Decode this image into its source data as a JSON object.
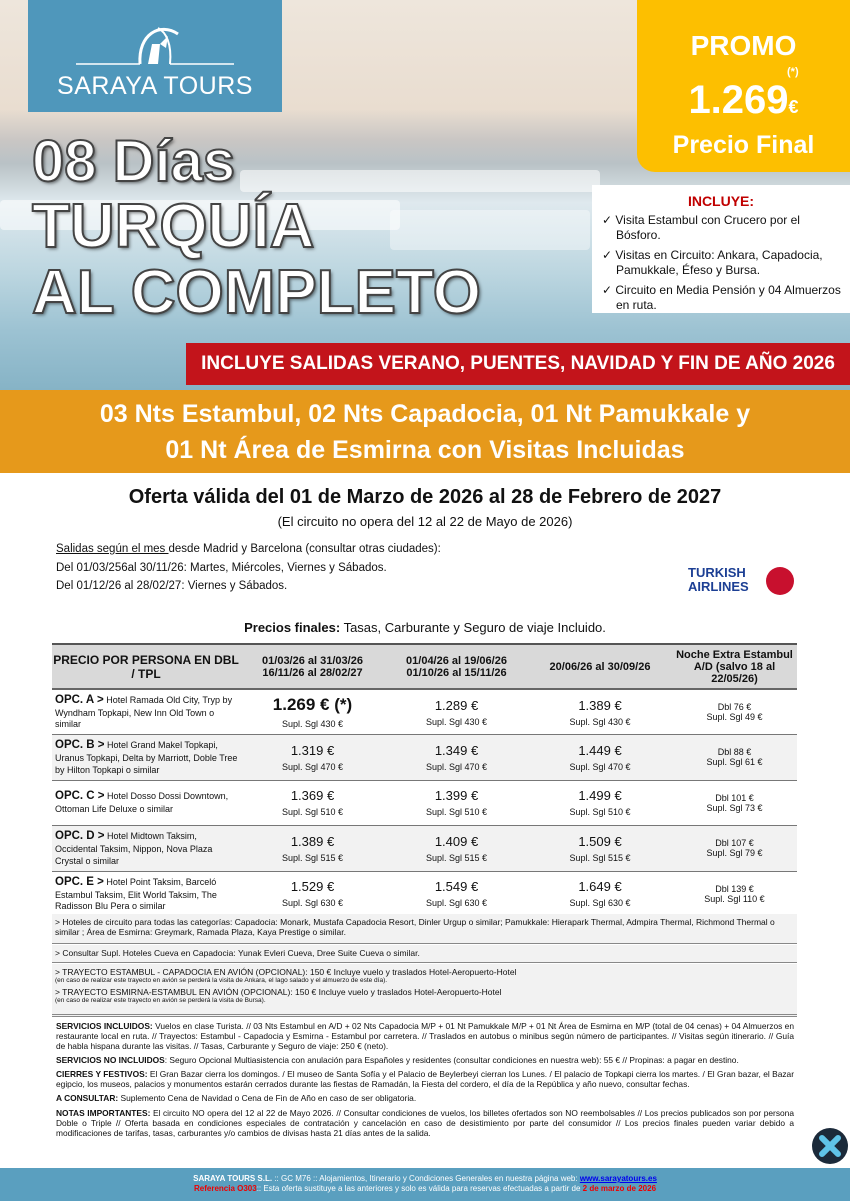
{
  "logo": {
    "name": "SARAYA TOURS"
  },
  "hero": {
    "line1": "08 Días",
    "line2": "TURQUÍA",
    "line3": "AL COMPLETO"
  },
  "promo": {
    "label": "PROMO",
    "asterisk": "(*)",
    "price": "1.269",
    "currency": "€",
    "sub": "Precio Final"
  },
  "includes": {
    "title": "INCLUYE:",
    "items": [
      "Visita Estambul con Crucero por el Bósforo.",
      "Visitas en Circuito: Ankara, Capadocia, Pamukkale, Éfeso y Bursa.",
      "Circuito en Media Pensión y 04 Almuerzos en ruta."
    ]
  },
  "banner": "INCLUYE SALIDAS VERANO, PUENTES, NAVIDAD Y FIN DE AÑO 2026",
  "subtitle": {
    "line1": "03 Nts Estambul, 02 Nts Capadocia, 01 Nt Pamukkale y",
    "line2": "01 Nt Área de Esmirna con Visitas Incluidas"
  },
  "offer": {
    "title": "Oferta válida del 01 de Marzo de 2026 al 28 de Febrero de 2027",
    "note": "(El circuito no opera del 12 al 22 de Mayo de 2026)"
  },
  "departures": {
    "underlined": "Salidas según el mes ",
    "intro": "desde Madrid y Barcelona (consultar otras ciudades):",
    "line1": "Del 01/03/256al 30/11/26: Martes, Miércoles, Viernes y Sábados.",
    "line2": "Del 01/12/26 al 28/02/27: Viernes y Sábados."
  },
  "airline": {
    "line1": "TURKISH",
    "line2": "AIRLINES",
    "color": "#c8102e"
  },
  "final_prices": {
    "label": "Precios finales:",
    "text": " Tasas, Carburante y Seguro de viaje Incluido."
  },
  "table": {
    "headers": [
      "PRECIO POR PERSONA EN DBL / TPL",
      "01/03/26 al 31/03/26 16/11/26 al 28/02/27",
      "01/04/26 al 19/06/26 01/10/26 al 15/11/26",
      "20/06/26 al 30/09/26",
      "Noche Extra Estambul A/D (salvo 18 al 22/05/26)"
    ],
    "rows": [
      {
        "opt": "OPC. A >",
        "hotels": " Hotel Ramada Old City, Tryp by Wyndham Topkapi, New Inn Old Town o similar",
        "p1": "1.269 € (*)",
        "s1": "Supl. Sgl 430 €",
        "p2": "1.289 €",
        "s2": "Supl. Sgl 430 €",
        "p3": "1.389 €",
        "s3": "Supl. Sgl 430 €",
        "e1": "Dbl 76 €",
        "e2": "Supl. Sgl 49 €"
      },
      {
        "opt": "OPC. B >",
        "hotels": " Hotel Grand Makel Topkapi, Uranus Topkapi, Delta by Marriott, Doble Tree by Hilton Topkapi o similar",
        "p1": "1.319 €",
        "s1": "Supl. Sgl 470 €",
        "p2": "1.349 €",
        "s2": "Supl. Sgl 470 €",
        "p3": "1.449 €",
        "s3": "Supl. Sgl 470 €",
        "e1": "Dbl 88 €",
        "e2": "Supl. Sgl 61 €"
      },
      {
        "opt": "OPC. C >",
        "hotels": " Hotel Dosso Dossi Downtown, Ottoman Life Deluxe o similar",
        "p1": "1.369 €",
        "s1": "Supl. Sgl 510 €",
        "p2": "1.399 €",
        "s2": "Supl. Sgl 510 €",
        "p3": "1.499 €",
        "s3": "Supl. Sgl 510 €",
        "e1": "Dbl 101 €",
        "e2": "Supl. Sgl 73 €"
      },
      {
        "opt": "OPC. D >",
        "hotels": " Hotel Midtown Taksim, Occidental Taksim, Nippon, Nova Plaza Crystal o similar",
        "p1": "1.389 €",
        "s1": "Supl. Sgl 515 €",
        "p2": "1.409 €",
        "s2": "Supl. Sgl 515 €",
        "p3": "1.509 €",
        "s3": "Supl. Sgl 515 €",
        "e1": "Dbl 107 €",
        "e2": "Supl. Sgl 79 €"
      },
      {
        "opt": "OPC. E >",
        "hotels": " Hotel Point Taksim, Barceló Estambul Taksim, Elit World Taksim, The Radisson Blu Pera o similar",
        "p1": "1.529 €",
        "s1": "Supl. Sgl 630 €",
        "p2": "1.549 €",
        "s2": "Supl. Sgl 630 €",
        "p3": "1.649 €",
        "s3": "Supl. Sgl 630 €",
        "e1": "Dbl 139 €",
        "e2": "Supl. Sgl 110 €"
      }
    ]
  },
  "notes": {
    "hotels": "> Hoteles de circuito para todas las categorías: Capadocia: Monark, Mustafa Capadocia Resort, Dinler Urgup o similar; Pamukkale: Hierapark Thermal, Admpira Thermal, Richmond Thermal o similar ; Área de Esmirna: Greymark, Ramada Plaza, Kaya Prestige o similar.",
    "cave": "> Consultar Supl. Hoteles Cueva en Capadocia: Yunak Evleri Cueva, Dree Suite Cueva o similar.",
    "flight1": "> TRAYECTO ESTAMBUL - CAPADOCIA EN AVIÓN (OPCIONAL): 150 € Incluye vuelo y traslados Hotel-Aeropuerto-Hotel",
    "flight1_note": "(en caso de realizar este trayecto en avión se perderá la visita de Ankara, el lago salado y el almuerzo de este día).",
    "flight2": "> TRAYECTO ESMIRNA-ESTAMBUL EN AVIÓN (OPCIONAL): 150 € Incluye vuelo y traslados Hotel-Aeropuerto-Hotel",
    "flight2_note": "(en caso de realizar este trayecto en avión se perderá la visita de Bursa)."
  },
  "terms": [
    {
      "label": "SERVICIOS INCLUIDOS:",
      "text": " Vuelos en clase Turista. // 03 Nts Estambul en A/D + 02 Nts Capadocia M/P + 01 Nt Pamukkale M/P + 01 Nt Área de Esmirna en M/P (total de 04 cenas) + 04 Almuerzos en restaurante local en ruta. // Trayectos: Estambul - Capadocia y Esmirna - Estambul por carretera. // Traslados en autobus o minibus según número de participantes. // Visitas según itinerario. // Guía de habla hispana durante las visitas. // Tasas, Carburante y Seguro de viaje: 250 € (neto)."
    },
    {
      "label": "SERVICIOS NO INCLUIDOS",
      "text": ": Seguro Opcional Multiasistencia con anulación para Españoles y residentes (consultar condiciones en nuestra web): 55 € // Propinas: a pagar en destino."
    },
    {
      "label": "CIERRES Y FESTIVOS:",
      "text": " El Gran Bazar cierra los domingos. / El museo de Santa Sofía y el Palacio de Beylerbeyi cierran los Lunes. / El palacio de Topkapi cierra los martes. / El Gran bazar, el Bazar egipcio, los museos, palacios y monumentos estarán cerrados durante las fiestas de Ramadán, la Fiesta del cordero, el día de la República y año nuevo, consultar fechas."
    },
    {
      "label": "A CONSULTAR:",
      "text": " Suplemento Cena de Navidad o Cena de Fin de Año en caso de ser obligatoria."
    },
    {
      "label": "NOTAS IMPORTANTES:",
      "text": " El circuito NO opera del 12 al 22 de Mayo 2026. // Consultar condiciones de vuelos, los billetes ofertados son NO reembolsables // Los precios publicados son por persona Doble o Triple // Oferta basada en condiciones especiales de contratación y cancelación en caso de desistimiento por parte del consumidor // Los precios finales pueden variar debido a modificaciones de tarifas, tasas, carburantes y/o cambios de divisas hasta 21 días antes de la salida."
    }
  ],
  "footer": {
    "company": "SARAYA TOURS S.L.",
    "line1": " :: GC M76 ::  Alojamientos, Itinerario y Condiciones Generales en nuestra página web:  ",
    "web": "www.sarayatours.es",
    "ref": "Referencia O303",
    "line2": ":: Esta oferta sustituye a las anteriores y solo es válida para reservas efectuadas a partir de ",
    "date": "2 de marzo de 2026"
  }
}
